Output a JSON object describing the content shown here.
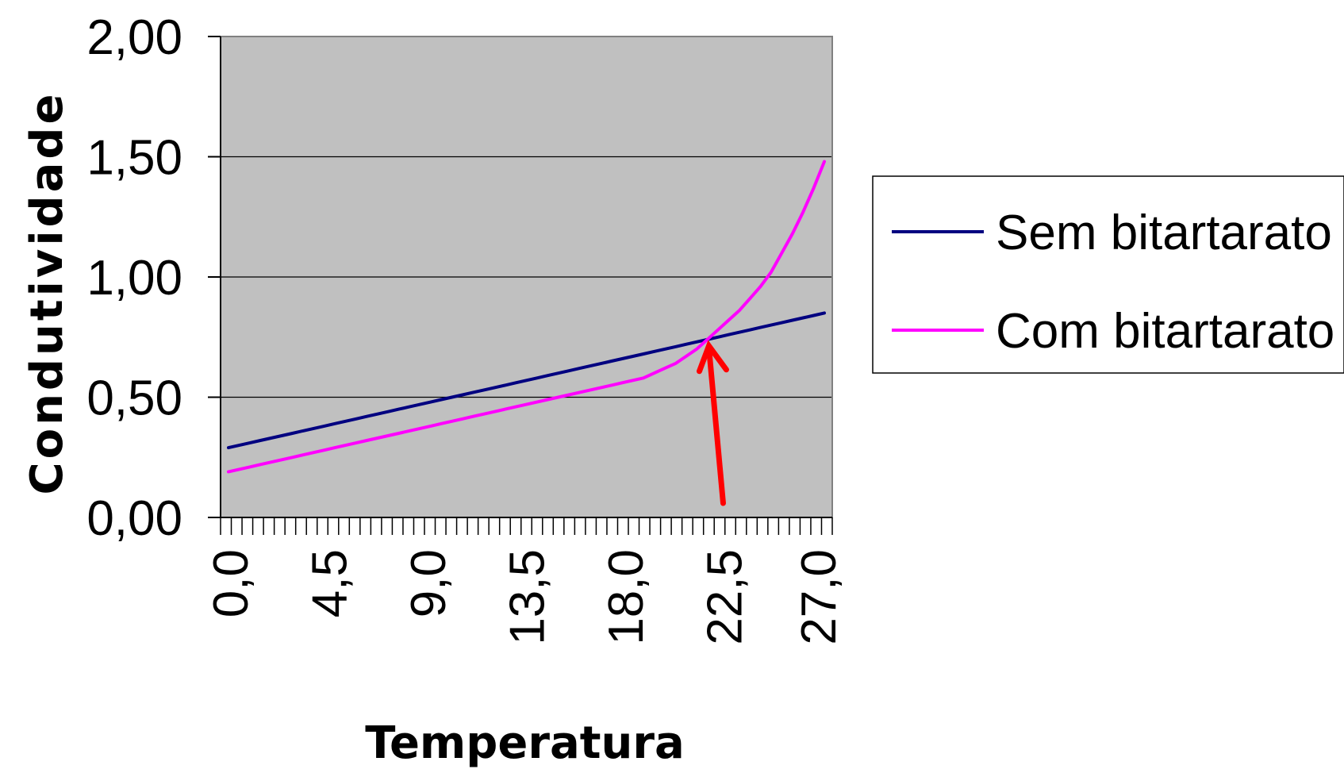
{
  "chart_data": {
    "type": "line",
    "xlabel": "Temperatura",
    "ylabel": "Condutividade",
    "ylim": [
      0,
      2
    ],
    "yticks": [
      "0,00",
      "0,50",
      "1,00",
      "1,50",
      "2,00"
    ],
    "xtick_labels": [
      "0,0",
      "4,5",
      "9,0",
      "13,5",
      "18,0",
      "22,5",
      "27,0"
    ],
    "x": [
      0.0,
      0.5,
      1.0,
      1.5,
      2.0,
      2.5,
      3.0,
      3.5,
      4.0,
      4.5,
      5.0,
      5.5,
      6.0,
      6.5,
      7.0,
      7.5,
      8.0,
      8.5,
      9.0,
      9.5,
      10.0,
      10.5,
      11.0,
      11.5,
      12.0,
      12.5,
      13.0,
      13.5,
      14.0,
      14.5,
      15.0,
      15.5,
      16.0,
      16.5,
      17.0,
      17.5,
      18.0,
      18.5,
      19.0,
      19.5,
      20.0,
      20.5,
      21.0,
      21.5,
      22.0,
      22.5,
      23.0,
      23.5,
      24.0,
      24.5,
      25.0,
      25.5,
      26.0,
      26.5,
      27.0,
      27.5,
      28.0
    ],
    "series": [
      {
        "name": "Sem bitartarato",
        "color": "#000080",
        "values": [
          0.29,
          0.3,
          0.31,
          0.32,
          0.33,
          0.34,
          0.35,
          0.36,
          0.37,
          0.38,
          0.39,
          0.4,
          0.41,
          0.42,
          0.43,
          0.44,
          0.45,
          0.46,
          0.47,
          0.48,
          0.49,
          0.5,
          0.51,
          0.52,
          0.53,
          0.54,
          0.55,
          0.56,
          0.57,
          0.58,
          0.59,
          0.6,
          0.61,
          0.62,
          0.63,
          0.64,
          0.65,
          0.66,
          0.67,
          0.68,
          0.69,
          0.7,
          0.71,
          0.72,
          0.73,
          0.74,
          0.75,
          0.76,
          0.77,
          0.78,
          0.79,
          0.8,
          0.81,
          0.82,
          0.83,
          0.84,
          0.85
        ]
      },
      {
        "name": "Com bitartarato",
        "color": "#FF00FF",
        "values": [
          0.19,
          0.2,
          0.21,
          0.22,
          0.23,
          0.24,
          0.25,
          0.26,
          0.27,
          0.28,
          0.29,
          0.3,
          0.31,
          0.32,
          0.33,
          0.34,
          0.35,
          0.36,
          0.37,
          0.38,
          0.39,
          0.4,
          0.41,
          0.42,
          0.43,
          0.44,
          0.45,
          0.46,
          0.47,
          0.48,
          0.49,
          0.5,
          0.51,
          0.52,
          0.53,
          0.54,
          0.55,
          0.56,
          0.57,
          0.58,
          0.6,
          0.62,
          0.64,
          0.67,
          0.7,
          0.74,
          0.78,
          0.82,
          0.86,
          0.91,
          0.96,
          1.02,
          1.1,
          1.18,
          1.27,
          1.37,
          1.48
        ]
      }
    ],
    "annotation": {
      "type": "arrow",
      "color": "#FF0000",
      "target_x": 22.5,
      "target_y": 0.74
    },
    "plot_background": "#C0C0C0",
    "grid": true,
    "legend_position": "right"
  }
}
